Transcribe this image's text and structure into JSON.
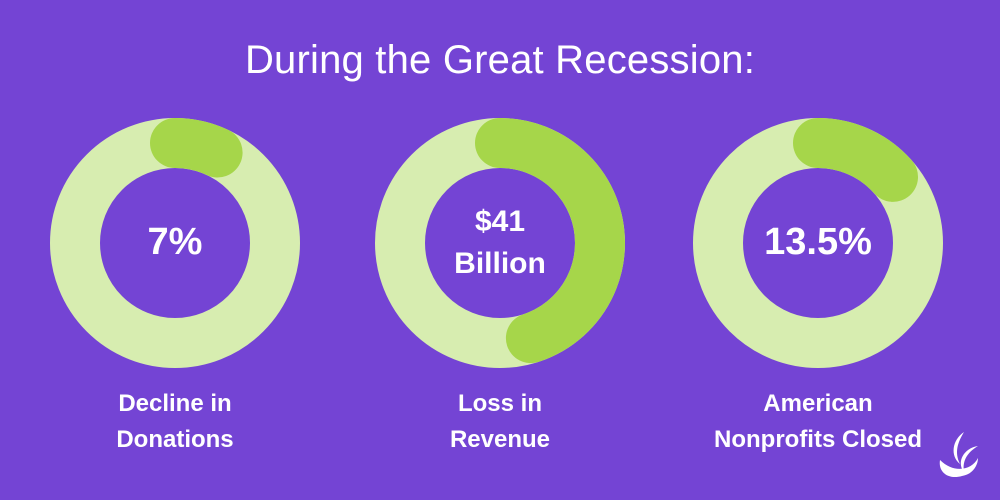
{
  "title": "During the Great Recession:",
  "colors": {
    "background": "#7444d4",
    "track": "#d7edb0",
    "arc": "#a6d64a",
    "text": "#ffffff"
  },
  "chart_data": [
    {
      "type": "pie",
      "value_label": "7%",
      "label_lines": [
        "Decline in",
        "Donations"
      ],
      "highlight_percent": 7
    },
    {
      "type": "pie",
      "value_label_lines": [
        "$41",
        "Billion"
      ],
      "label_lines": [
        "Loss in",
        "Revenue"
      ],
      "highlight_percent": 45
    },
    {
      "type": "pie",
      "value_label": "13.5%",
      "label_lines": [
        "American",
        "Nonprofits Closed"
      ],
      "highlight_percent": 13.5
    }
  ],
  "icons": {
    "logo": "brand-logo-icon"
  }
}
